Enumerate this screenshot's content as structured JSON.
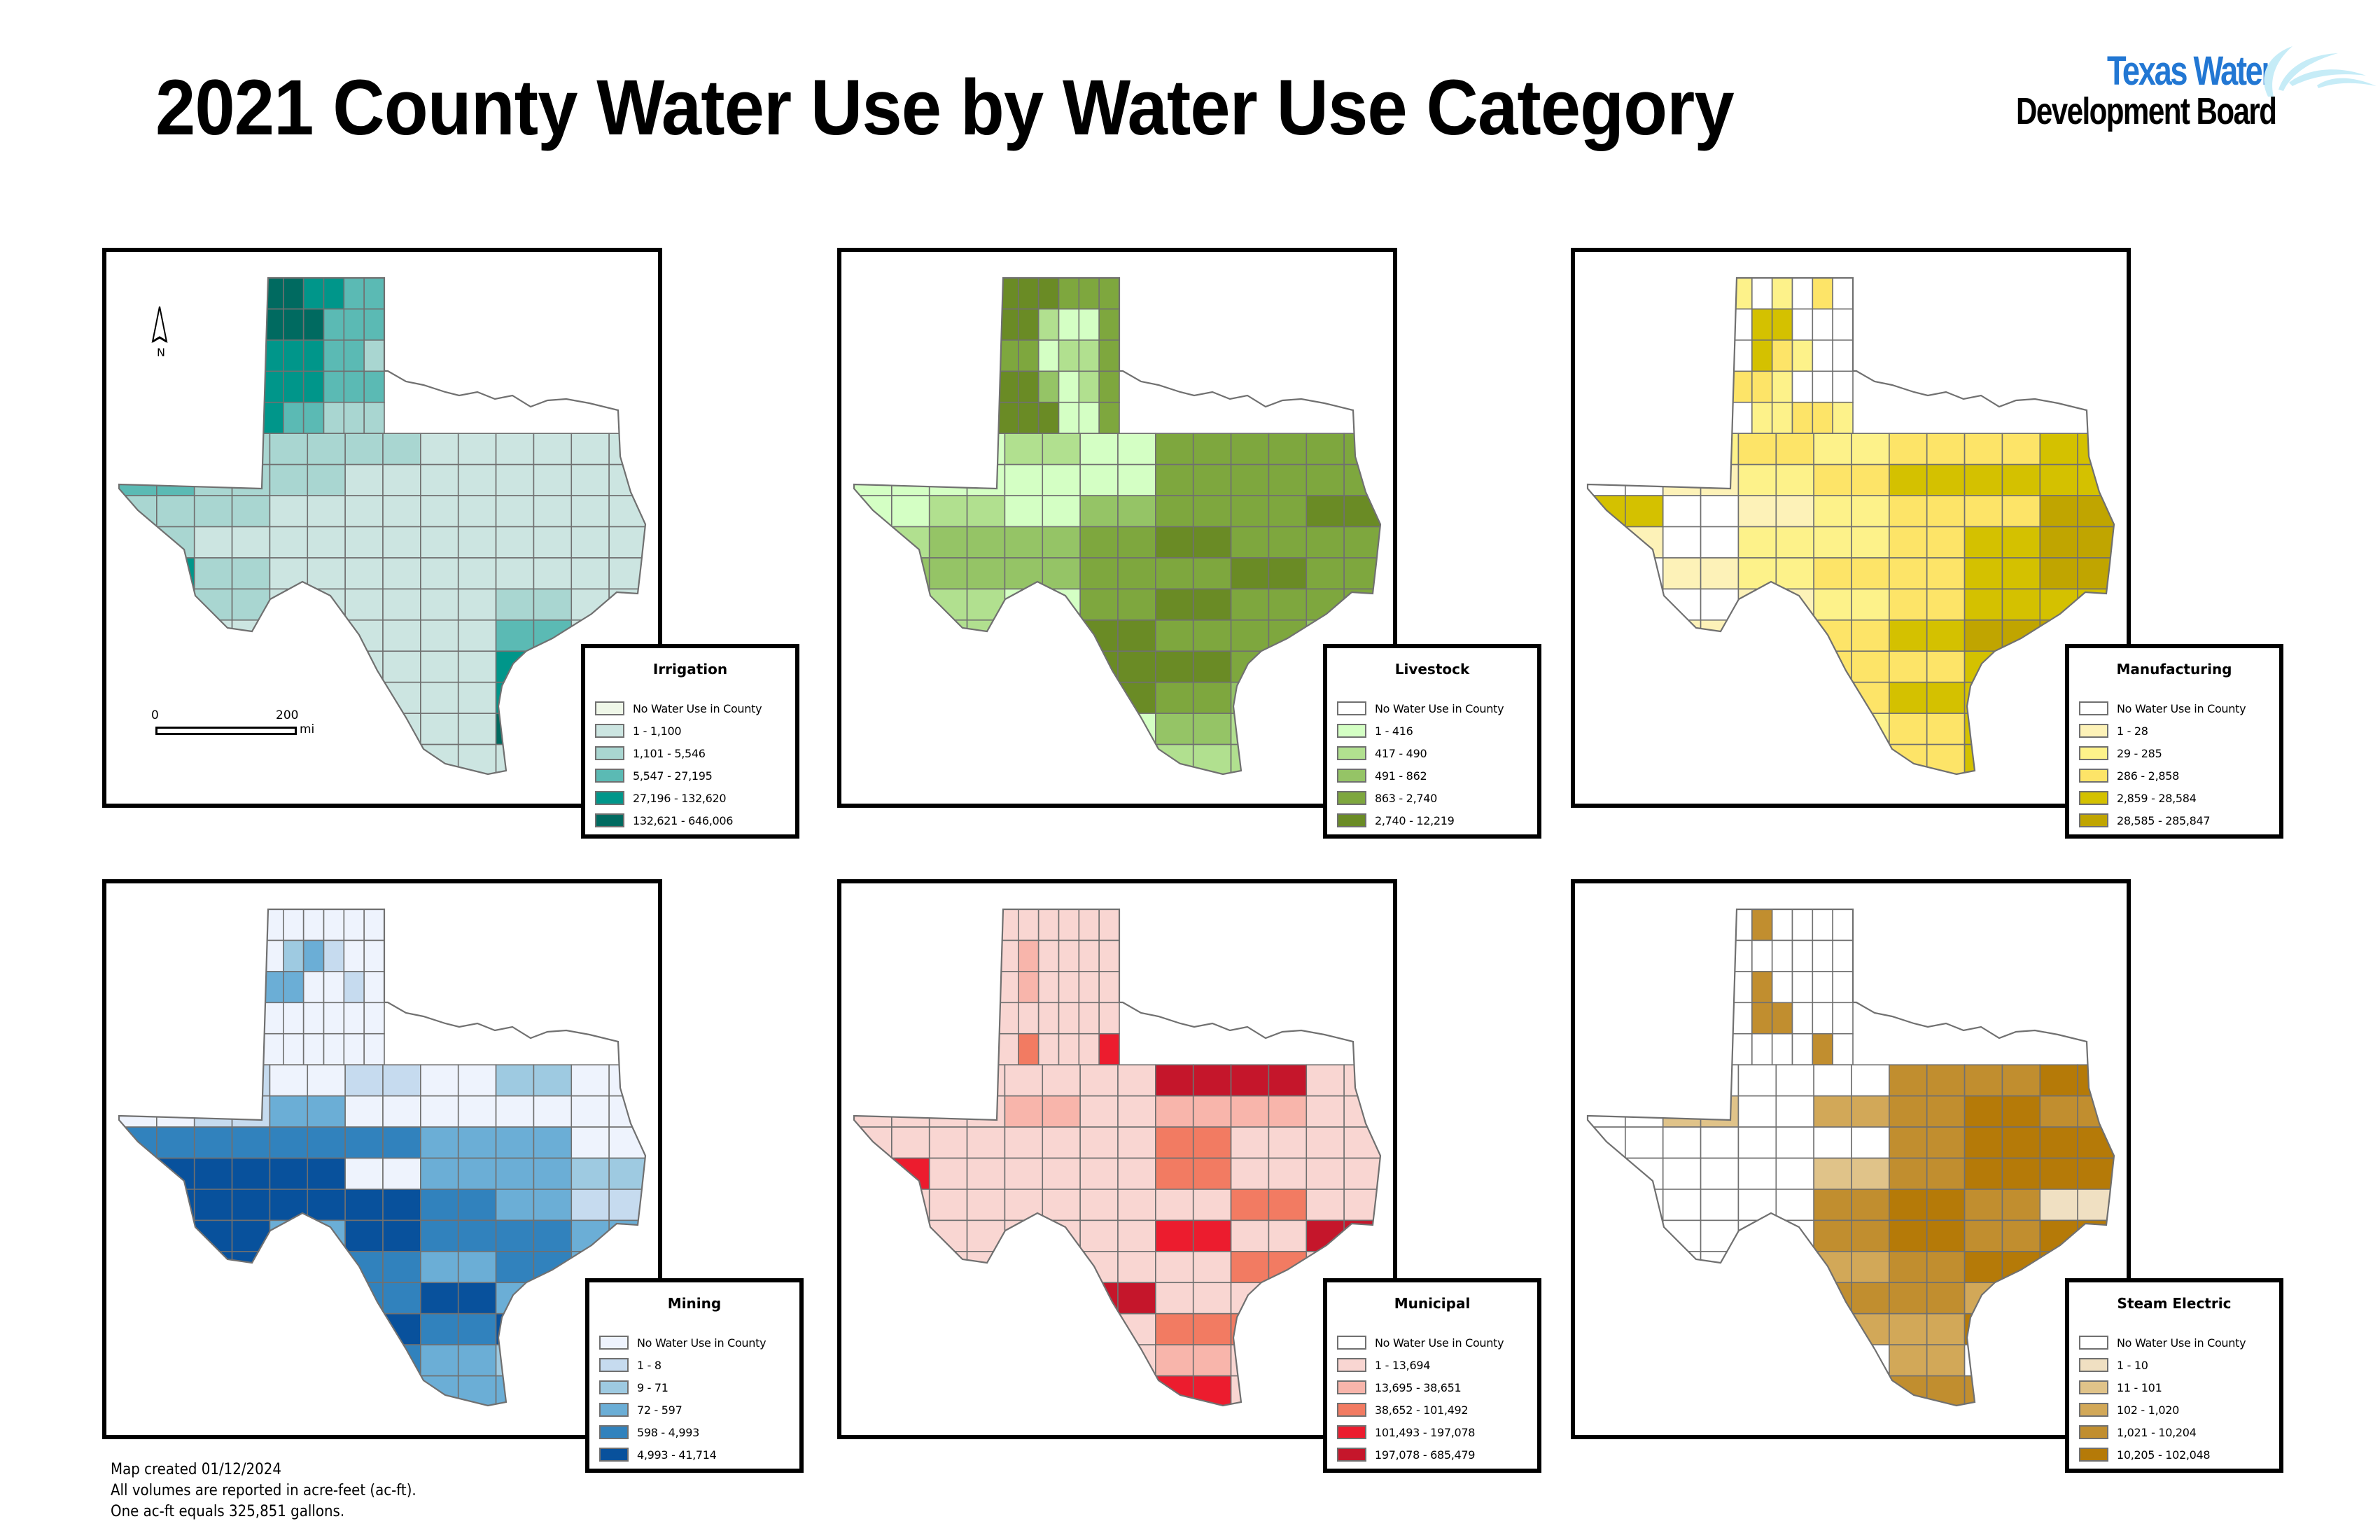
{
  "title": "2021 County Water Use by Water Use Category",
  "logo": {
    "line1": "Texas Water",
    "line2": "Development Board",
    "colors": {
      "blue": "#2277d3",
      "splash": "#c6ecf7"
    }
  },
  "north_arrow": {
    "label": "N"
  },
  "scale_bar": {
    "start": "0",
    "end": "200",
    "unit": "mi"
  },
  "notes": {
    "line1": "Map created 01/12/2024",
    "line2": "All volumes are reported in acre-feet (ac-ft).",
    "line3": "One ac-ft equals 325,851 gallons."
  },
  "border_color": "#707070",
  "maps": [
    {
      "id": "irrigation",
      "legend_title": "Irrigation",
      "classes": [
        {
          "label": "No Water Use in County",
          "color": "#eff7e8"
        },
        {
          "label": "1 - 1,100",
          "color": "#cce5e1"
        },
        {
          "label": "1,101 - 5,546",
          "color": "#a9d6d1"
        },
        {
          "label": "5,547 - 27,195",
          "color": "#5bbab4"
        },
        {
          "label": "27,196 - 132,620",
          "color": "#00968a"
        },
        {
          "label": "132,621 - 646,006",
          "color": "#006a60"
        }
      ],
      "pattern": [
        "5544333",
        "5553332",
        "4443321",
        "4443332",
        "4332221",
        "3222111",
        "3221111",
        "2211111",
        "2111111",
        "4211111",
        "3211121",
        "2111131",
        "2111141",
        "2211141",
        "1111151",
        "2111111"
      ]
    },
    {
      "id": "livestock",
      "legend_title": "Livestock",
      "classes": [
        {
          "label": "No Water Use in County",
          "color": "#ffffff"
        },
        {
          "label": "1 - 416",
          "color": "#d4ffc4"
        },
        {
          "label": "417 - 490",
          "color": "#b1e08f"
        },
        {
          "label": "491 - 862",
          "color": "#95c466"
        },
        {
          "label": "863 - 2,740",
          "color": "#7ea73e"
        },
        {
          "label": "2,740 - 12,219",
          "color": "#6a8b25"
        }
      ],
      "pattern": [
        "5554444",
        "5521144",
        "4412244",
        "5531244",
        "5551144",
        "1121444",
        "1111444",
        "1213445",
        "2334544",
        "3334454",
        "2214544",
        "2225443",
        "1115543",
        "2225431",
        "1111321",
        "2212221"
      ]
    },
    {
      "id": "manufacturing",
      "legend_title": "Manufacturing",
      "classes": [
        {
          "label": "No Water Use in County",
          "color": "#ffffff"
        },
        {
          "label": "1 - 28",
          "color": "#fdf2b8"
        },
        {
          "label": "29 - 285",
          "color": "#fdf28a"
        },
        {
          "label": "286 - 2,858",
          "color": "#fde468"
        },
        {
          "label": "2,859 - 28,584",
          "color": "#d4c100"
        },
        {
          "label": "28,585 - 285,847",
          "color": "#c0a500"
        }
      ],
      "pattern": [
        "2020300",
        "0440000",
        "0432000",
        "3320000",
        "0223323",
        "1232334",
        "0123444",
        "4012335",
        "1022345",
        "0123345",
        "0012344",
        "0123455",
        "0123345",
        "0223445",
        "0112344",
        "0022344"
      ]
    },
    {
      "id": "mining",
      "legend_title": "Mining",
      "classes": [
        {
          "label": "No Water Use in County",
          "color": "#eef3fd"
        },
        {
          "label": "1 - 8",
          "color": "#c6dbef"
        },
        {
          "label": "9 - 71",
          "color": "#9ecae1"
        },
        {
          "label": "72 - 597",
          "color": "#6baed6"
        },
        {
          "label": "598 - 4,993",
          "color": "#3182bd"
        },
        {
          "label": "4,993 - 41,714",
          "color": "#08519c"
        }
      ],
      "pattern": [
        "0000000",
        "0231000",
        "3300100",
        "0000000",
        "0000000",
        "0101020",
        "0130000",
        "4444330",
        "5550332",
        "5555431",
        "4535443",
        "3544343",
        "3344534",
        "3455453",
        "4554320",
        "1123330"
      ]
    },
    {
      "id": "municipal",
      "legend_title": "Municipal",
      "classes": [
        {
          "label": "No Water Use in County",
          "color": "#ffffff"
        },
        {
          "label": "1 - 13,694",
          "color": "#f9d6d2"
        },
        {
          "label": "13,695 - 38,651",
          "color": "#f8b5ab"
        },
        {
          "label": "38,652 - 101,492",
          "color": "#f27b62"
        },
        {
          "label": "101,493 - 197,078",
          "color": "#ec1c2e"
        },
        {
          "label": "197,078 - 685,479",
          "color": "#c5162b"
        }
      ],
      "pattern": [
        "1111111",
        "1211111",
        "1211111",
        "1111111",
        "1311141",
        "1111551",
        "1121221",
        "1111311",
        "4111311",
        "1111131",
        "1111415",
        "1111131",
        "1115113",
        "1111331",
        "1111211",
        "1111411"
      ]
    },
    {
      "id": "steam_electric",
      "legend_title": "Steam Electric",
      "classes": [
        {
          "label": "No Water Use in County",
          "color": "#ffffff"
        },
        {
          "label": "1 - 10",
          "color": "#f0e0c2"
        },
        {
          "label": "11 - 101",
          "color": "#e0c389"
        },
        {
          "label": "102 - 1,020",
          "color": "#d2a858"
        },
        {
          "label": "1,021 - 10,204",
          "color": "#c18e2f"
        },
        {
          "label": "10,205 - 102,048",
          "color": "#b57a08"
        }
      ],
      "pattern": [
        "0400000",
        "0000000",
        "0400000",
        "0440000",
        "0000405",
        "3000445",
        "0203454",
        "0000455",
        "0002455",
        "0004541",
        "0004545",
        "0003455",
        "0004435",
        "0003354",
        "0000300",
        "0003440"
      ]
    }
  ]
}
